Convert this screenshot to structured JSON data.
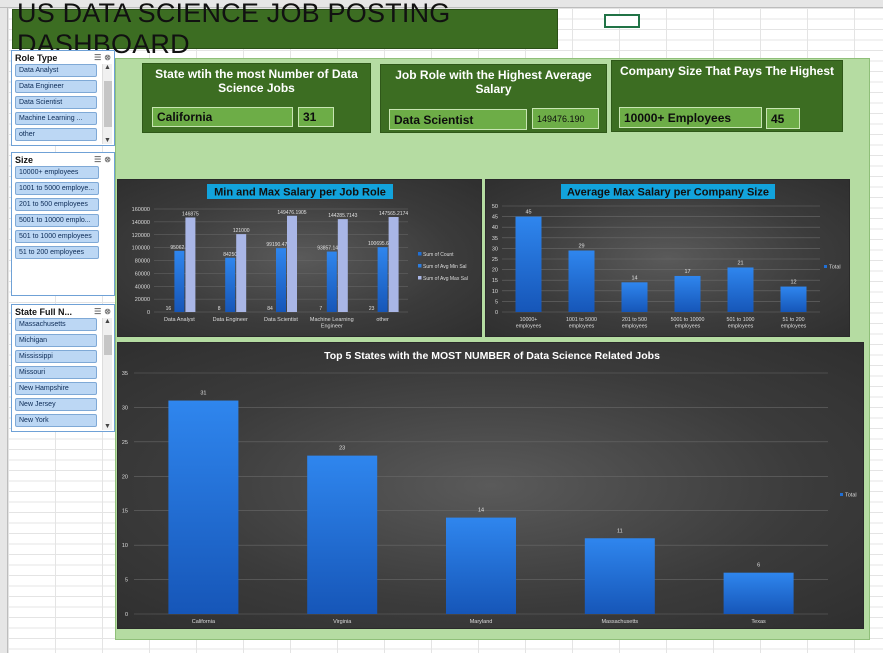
{
  "dashboard": {
    "title": "US DATA SCIENCE JOB POSTING DASHBOARD"
  },
  "slicers": {
    "role": {
      "title": "Role Type",
      "items": [
        "Data Analyst",
        "Data Engineer",
        "Data Scientist",
        "Machine Learning ...",
        "other"
      ]
    },
    "size": {
      "title": "Size",
      "items": [
        "10000+ employees",
        "1001 to 5000 employe...",
        "201 to 500 employees",
        "5001 to 10000 emplo...",
        "501 to 1000 employees",
        "51 to 200 employees"
      ]
    },
    "state": {
      "title": "State Full N...",
      "items": [
        "Massachusetts",
        "Michigan",
        "Mississippi",
        "Missouri",
        "New Hampshire",
        "New Jersey",
        "New York"
      ]
    }
  },
  "kpis": {
    "state": {
      "label": "State wtih the most Number of Data Science Jobs",
      "value": "California",
      "count": "31"
    },
    "role": {
      "label": "Job Role with the Highest Average Salary",
      "value": "Data Scientist",
      "count": "149476.190"
    },
    "company": {
      "label": "Company Size That Pays The Highest",
      "value": "10000+ Employees",
      "count": "45"
    }
  },
  "colors": {
    "count_bar": "#1f6fd6",
    "min_bar": "#2d7ee0",
    "max_bar": "#a9b6e6",
    "title_bg": "#12a3dc"
  },
  "chart_data": [
    {
      "type": "bar",
      "title": "Min and Max Salary per Job Role",
      "categories": [
        "Data Analyst",
        "Data Engineer",
        "Data Scientist",
        "Machine Learning Engineer",
        "other"
      ],
      "series": [
        {
          "name": "Sum of Count",
          "values": [
            16,
            8,
            84,
            7,
            23
          ],
          "labels": [
            "16",
            "8",
            "84",
            "7",
            "23"
          ]
        },
        {
          "name": "Sum of Avg Min Sal",
          "values": [
            95062.5,
            84250,
            99190.47619,
            93857.14286,
            100695.6522
          ],
          "labels": [
            "95062.5",
            "84250",
            "99190.47619",
            "93857.14286",
            "100695.6522"
          ]
        },
        {
          "name": "Sum of Avg Max Sal",
          "values": [
            146875,
            121000,
            149476.1905,
            144285.7143,
            147565.2174
          ],
          "labels": [
            "146875",
            "121000",
            "149476.1905",
            "144285.7143",
            "147565.2174"
          ]
        }
      ],
      "ylim": [
        0,
        160000
      ],
      "yticks": [
        "0",
        "20000",
        "40000",
        "60000",
        "80000",
        "100000",
        "120000",
        "140000",
        "160000"
      ],
      "legend": "right",
      "grid": true
    },
    {
      "type": "bar",
      "title": "Average Max Salary per Company Size",
      "categories": [
        "10000+ employees",
        "1001 to 5000 employees",
        "201 to 500 employees",
        "5001 to 10000 employees",
        "501 to 1000 employees",
        "51 to 200 employees"
      ],
      "series": [
        {
          "name": "Total",
          "values": [
            45,
            29,
            14,
            17,
            21,
            12
          ]
        }
      ],
      "ylim": [
        0,
        50
      ],
      "yticks": [
        "0",
        "5",
        "10",
        "15",
        "20",
        "25",
        "30",
        "35",
        "40",
        "45",
        "50"
      ],
      "legend": "right",
      "grid": true
    },
    {
      "type": "bar",
      "title": "Top 5 States with the MOST NUMBER of Data Science Related Jobs",
      "categories": [
        "California",
        "Virginia",
        "Maryland",
        "Massachusetts",
        "Texas"
      ],
      "series": [
        {
          "name": "Total",
          "values": [
            31,
            23,
            14,
            11,
            6
          ]
        }
      ],
      "ylim": [
        0,
        35
      ],
      "yticks": [
        "0",
        "5",
        "10",
        "15",
        "20",
        "25",
        "30",
        "35"
      ],
      "legend": "right",
      "grid": true
    }
  ]
}
